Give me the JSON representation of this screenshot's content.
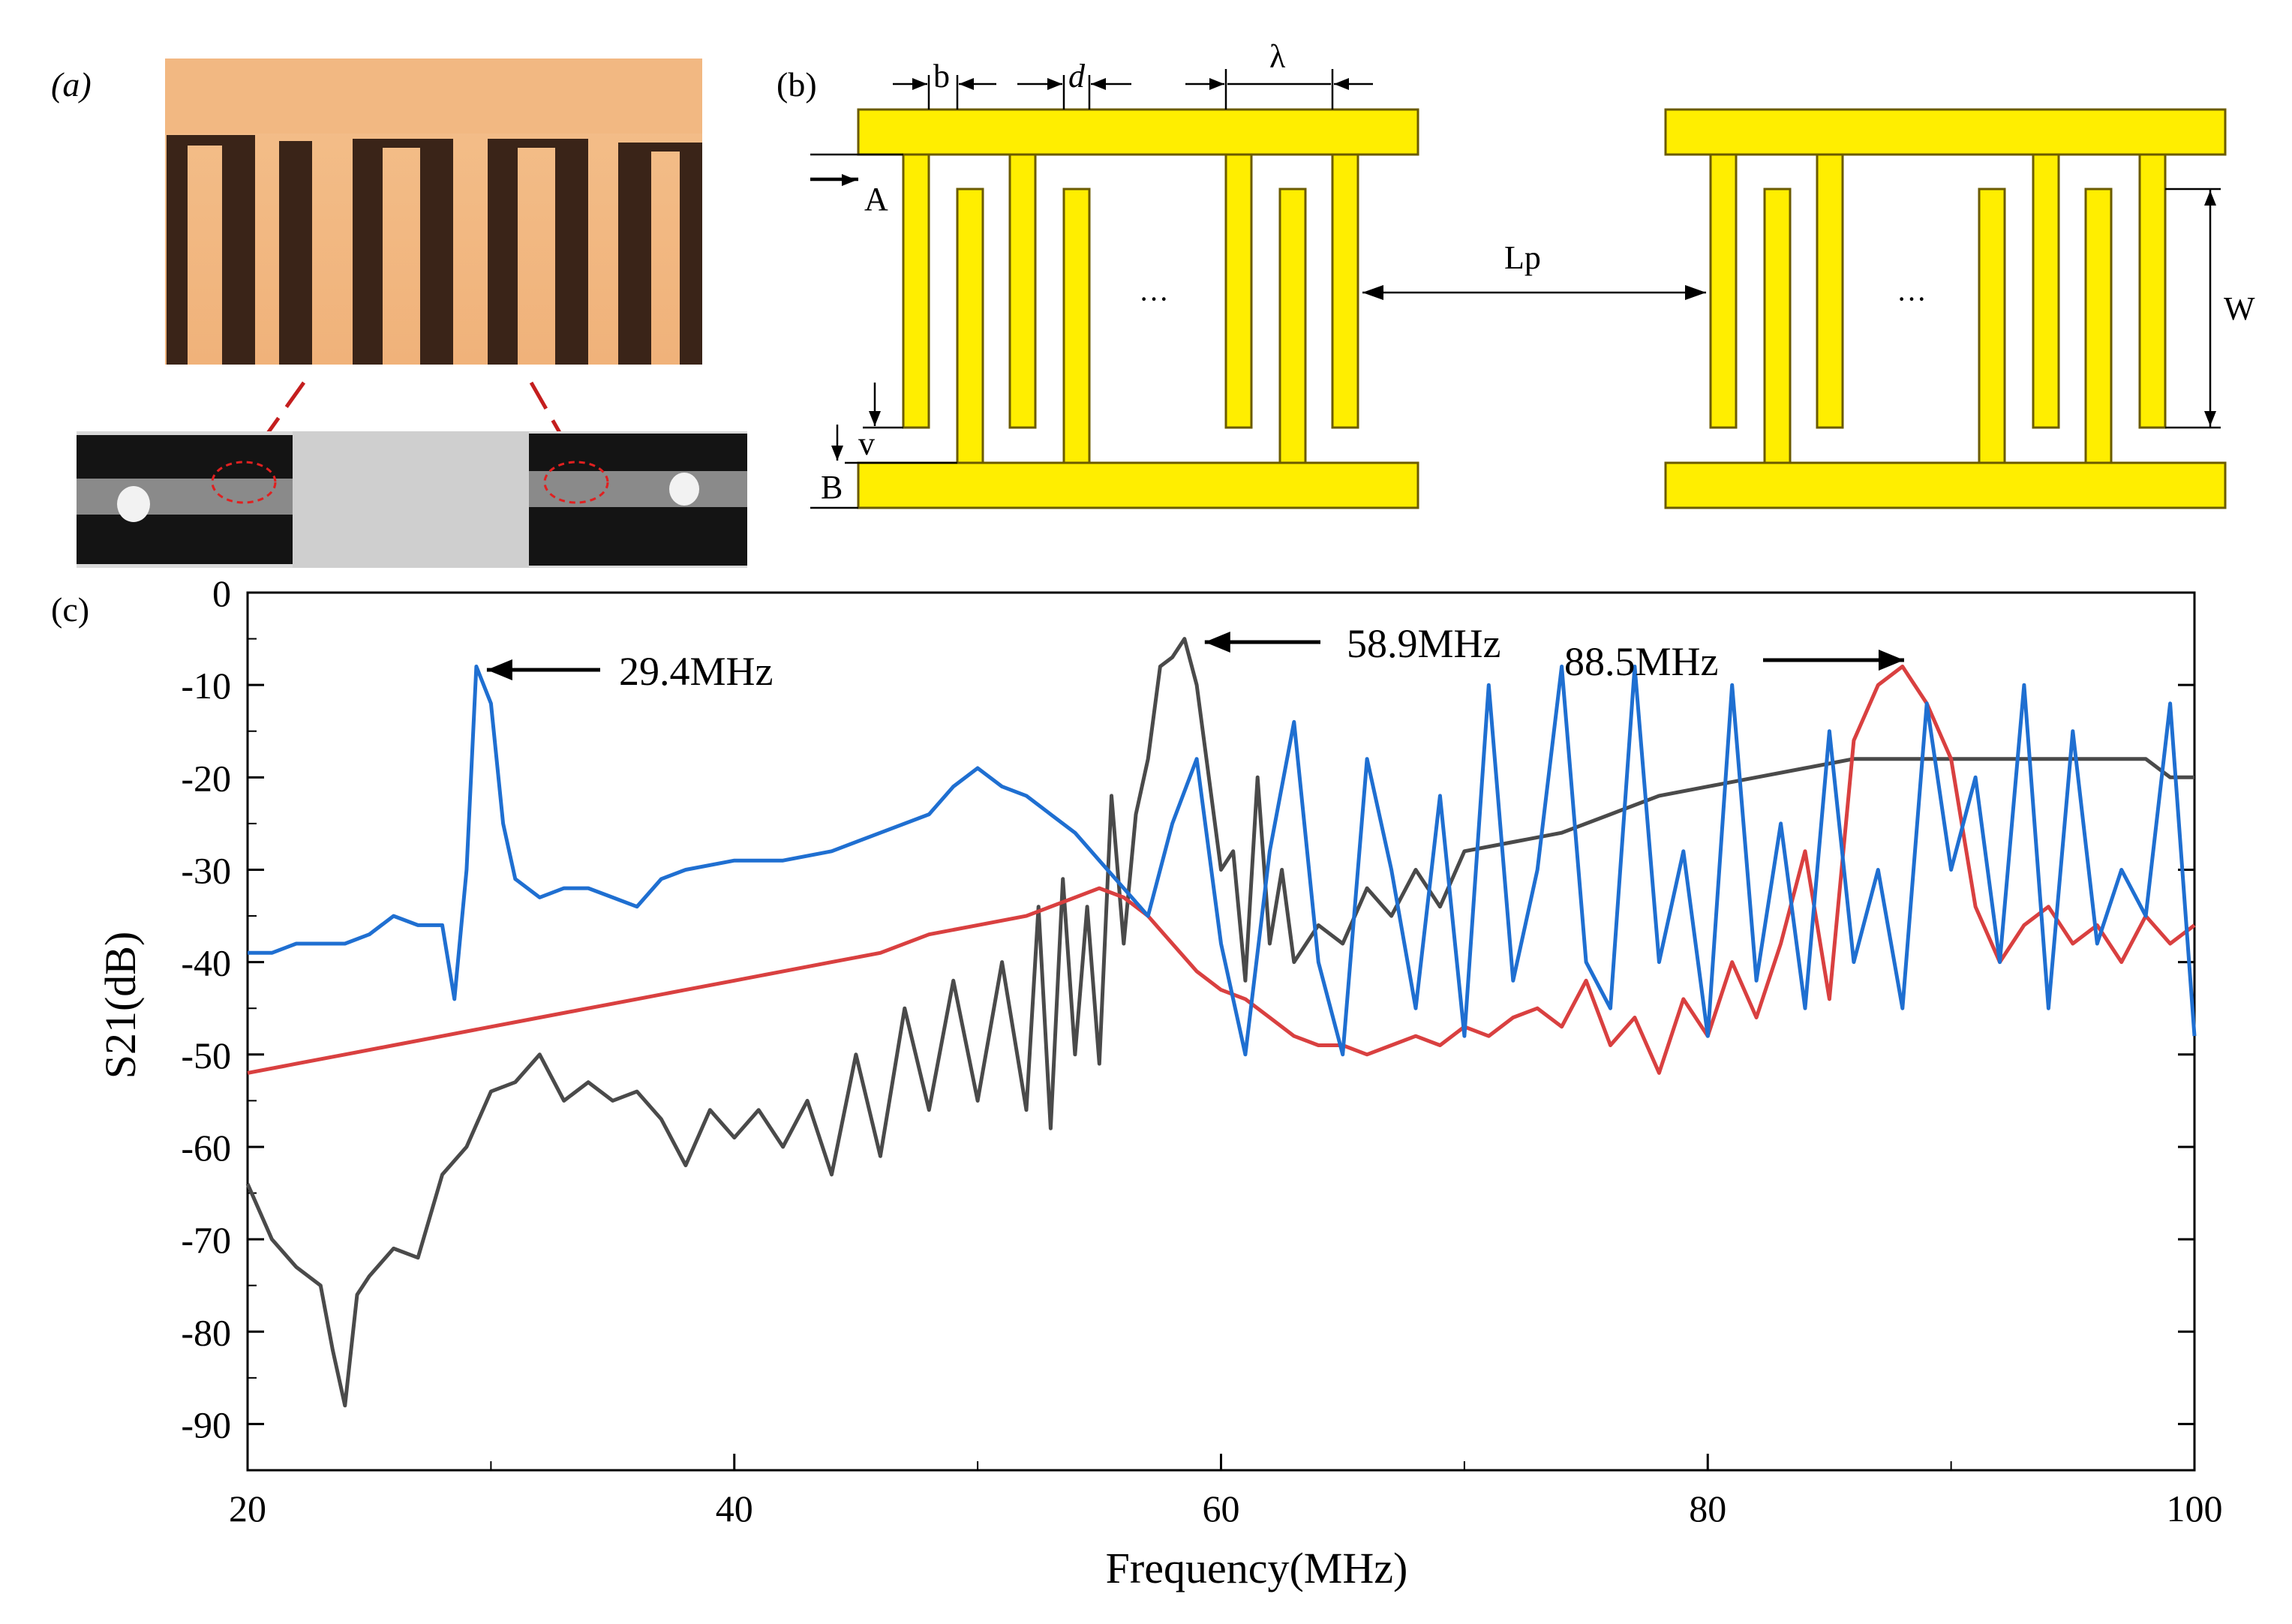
{
  "panels": {
    "a": {
      "label": "(a)"
    },
    "b": {
      "label": "(b)",
      "dims": {
        "b": "b",
        "d": "d",
        "lambda": "λ",
        "A": "A",
        "B": "B",
        "v": "v",
        "Lp": "Lp",
        "W": "W"
      },
      "ellipsis": "···"
    },
    "c": {
      "label": "(c)"
    }
  },
  "colors": {
    "blue": "#1f6fd1",
    "red": "#d94040",
    "gray": "#4a4a4a",
    "electrode": "#ffee00",
    "electrode_edge": "#6b5b00"
  },
  "chart_data": {
    "type": "line",
    "xlabel": "Frequency(MHz)",
    "ylabel": "S21(dB)",
    "xlim": [
      20,
      100
    ],
    "ylim": [
      -95,
      0
    ],
    "x_ticks": [
      20,
      40,
      60,
      80,
      100
    ],
    "y_ticks": [
      0,
      -10,
      -20,
      -30,
      -40,
      -50,
      -60,
      -70,
      -80,
      -90
    ],
    "annotations": [
      {
        "text": "29.4MHz",
        "x": 29.4,
        "y": -8
      },
      {
        "text": "58.9MHz",
        "x": 58.9,
        "y": -5
      },
      {
        "text": "88.5MHz",
        "x": 88.5,
        "y": -7
      }
    ],
    "series": [
      {
        "name": "blue",
        "color": "#1f6fd1",
        "x": [
          20,
          21,
          22,
          23,
          24,
          25,
          26,
          27,
          28,
          28.5,
          29,
          29.4,
          30,
          30.5,
          31,
          32,
          33,
          34,
          35,
          36,
          37,
          38,
          40,
          42,
          44,
          46,
          48,
          49,
          50,
          51,
          52,
          53,
          54,
          55,
          56,
          57,
          58,
          59,
          60,
          61,
          62,
          63,
          64,
          65,
          66,
          67,
          68,
          69,
          70,
          71,
          72,
          73,
          74,
          75,
          76,
          77,
          78,
          79,
          80,
          81,
          82,
          83,
          84,
          85,
          86,
          87,
          88,
          89,
          90,
          91,
          92,
          93,
          94,
          95,
          96,
          97,
          98,
          99,
          100
        ],
        "y": [
          -39,
          -39,
          -38,
          -38,
          -38,
          -37,
          -35,
          -36,
          -36,
          -44,
          -30,
          -8,
          -12,
          -25,
          -31,
          -33,
          -32,
          -32,
          -33,
          -34,
          -31,
          -30,
          -29,
          -29,
          -28,
          -26,
          -24,
          -21,
          -19,
          -21,
          -22,
          -24,
          -26,
          -29,
          -32,
          -35,
          -25,
          -18,
          -38,
          -50,
          -28,
          -14,
          -40,
          -50,
          -18,
          -30,
          -45,
          -22,
          -48,
          -10,
          -42,
          -30,
          -8,
          -40,
          -45,
          -8,
          -40,
          -28,
          -48,
          -10,
          -42,
          -25,
          -45,
          -15,
          -40,
          -30,
          -45,
          -12,
          -30,
          -20,
          -40,
          -10,
          -45,
          -15,
          -38,
          -30,
          -35,
          -12,
          -48
        ]
      },
      {
        "name": "red",
        "color": "#d94040",
        "x": [
          20,
          22,
          24,
          26,
          28,
          30,
          32,
          34,
          36,
          38,
          40,
          42,
          44,
          46,
          48,
          50,
          52,
          54,
          55,
          56,
          57,
          58,
          59,
          60,
          61,
          62,
          63,
          64,
          65,
          66,
          67,
          68,
          69,
          70,
          71,
          72,
          73,
          74,
          75,
          76,
          77,
          78,
          79,
          80,
          81,
          82,
          83,
          84,
          85,
          86,
          87,
          88,
          89,
          90,
          91,
          92,
          93,
          94,
          95,
          96,
          97,
          98,
          99,
          100
        ],
        "y": [
          -52,
          -51,
          -50,
          -49,
          -48,
          -47,
          -46,
          -45,
          -44,
          -43,
          -42,
          -41,
          -40,
          -39,
          -37,
          -36,
          -35,
          -33,
          -32,
          -33,
          -35,
          -38,
          -41,
          -43,
          -44,
          -46,
          -48,
          -49,
          -49,
          -50,
          -49,
          -48,
          -49,
          -47,
          -48,
          -46,
          -45,
          -47,
          -42,
          -49,
          -46,
          -52,
          -44,
          -48,
          -40,
          -46,
          -38,
          -28,
          -44,
          -16,
          -10,
          -8,
          -12,
          -18,
          -34,
          -40,
          -36,
          -34,
          -38,
          -36,
          -40,
          -35,
          -38,
          -36
        ]
      },
      {
        "name": "gray",
        "color": "#4a4a4a",
        "x": [
          20,
          21,
          22,
          23,
          23.5,
          24,
          24.5,
          25,
          26,
          27,
          28,
          29,
          30,
          31,
          32,
          33,
          34,
          35,
          36,
          37,
          38,
          39,
          40,
          41,
          42,
          43,
          44,
          45,
          46,
          47,
          48,
          49,
          50,
          51,
          52,
          52.5,
          53,
          53.5,
          54,
          54.5,
          55,
          55.5,
          56,
          56.5,
          57,
          57.5,
          58,
          58.5,
          59,
          59.5,
          60,
          60.5,
          61,
          61.5,
          62,
          62.5,
          63,
          64,
          65,
          66,
          67,
          68,
          69,
          70,
          72,
          74,
          76,
          78,
          80,
          82,
          84,
          86,
          88,
          90,
          92,
          94,
          96,
          98,
          99,
          100
        ],
        "y": [
          -64,
          -70,
          -73,
          -75,
          -82,
          -88,
          -76,
          -74,
          -71,
          -72,
          -63,
          -60,
          -54,
          -53,
          -50,
          -55,
          -53,
          -55,
          -54,
          -57,
          -62,
          -56,
          -59,
          -56,
          -60,
          -55,
          -63,
          -50,
          -61,
          -45,
          -56,
          -42,
          -55,
          -40,
          -56,
          -34,
          -58,
          -31,
          -50,
          -34,
          -51,
          -22,
          -38,
          -24,
          -18,
          -8,
          -7,
          -5,
          -10,
          -20,
          -30,
          -28,
          -42,
          -20,
          -38,
          -30,
          -40,
          -36,
          -38,
          -32,
          -35,
          -30,
          -34,
          -28,
          -27,
          -26,
          -24,
          -22,
          -21,
          -20,
          -19,
          -18,
          -18,
          -18,
          -18,
          -18,
          -18,
          -18,
          -20,
          -20
        ]
      }
    ]
  }
}
